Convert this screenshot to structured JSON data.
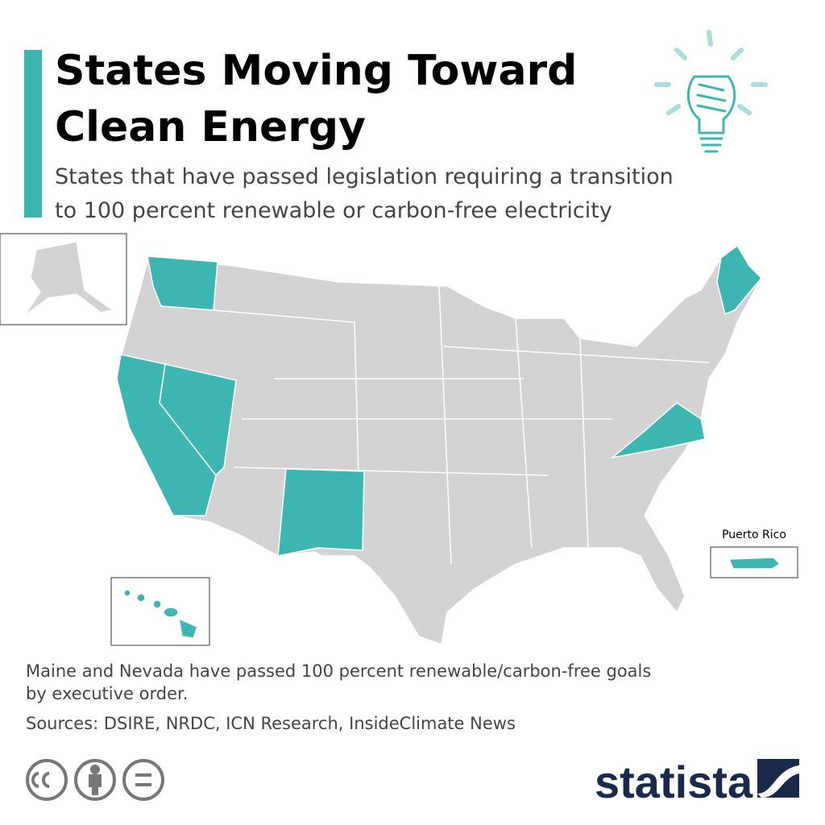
{
  "header": {
    "title_lines": [
      "States Moving Toward",
      "Clean Energy"
    ],
    "subtitle_lines": [
      "States that have passed legislation requiring a transition",
      "to 100 percent renewable or carbon-free electricity"
    ]
  },
  "map": {
    "inset_label": "Puerto Rico"
  },
  "footer": {
    "note_lines": [
      "Maine and Nevada have passed 100 percent renewable/carbon-free goals",
      "by executive order."
    ],
    "sources": "Sources: DSIRE, NRDC, ICN Research, InsideClimate News",
    "brand": "statista"
  }
}
